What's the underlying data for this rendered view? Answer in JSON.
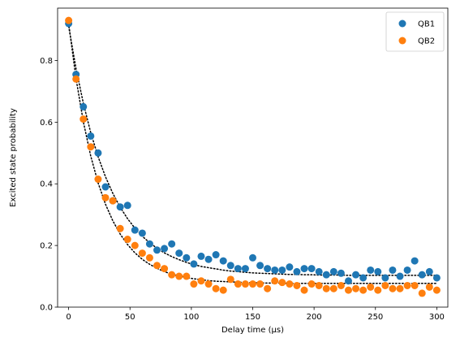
{
  "chart_data": {
    "type": "scatter",
    "title": "",
    "xlabel": "Delay time (µs)",
    "ylabel": "Excited state probability",
    "xlim": [
      -9,
      309
    ],
    "ylim": [
      0.0,
      0.97
    ],
    "xticks": [
      0,
      50,
      100,
      150,
      200,
      250,
      300
    ],
    "yticks": [
      0.0,
      0.2,
      0.4,
      0.6,
      0.8
    ],
    "ytick_labels": [
      "0.0",
      "0.2",
      "0.4",
      "0.6",
      "0.8"
    ],
    "grid": false,
    "legend_position": "top-right",
    "x": [
      0,
      6,
      12,
      18,
      24,
      30,
      36,
      42,
      48,
      54,
      60,
      66,
      72,
      78,
      84,
      90,
      96,
      102,
      108,
      114,
      120,
      126,
      132,
      138,
      144,
      150,
      156,
      162,
      168,
      174,
      180,
      186,
      192,
      198,
      204,
      210,
      216,
      222,
      228,
      234,
      240,
      246,
      252,
      258,
      264,
      270,
      276,
      282,
      288,
      294,
      300
    ],
    "series": [
      {
        "name": "QB1",
        "color": "#1f77b4",
        "values": [
          0.92,
          0.755,
          0.65,
          0.555,
          0.5,
          0.39,
          0.345,
          0.325,
          0.33,
          0.25,
          0.24,
          0.205,
          0.185,
          0.19,
          0.205,
          0.175,
          0.16,
          0.14,
          0.165,
          0.155,
          0.17,
          0.15,
          0.135,
          0.125,
          0.125,
          0.16,
          0.135,
          0.125,
          0.12,
          0.12,
          0.13,
          0.115,
          0.125,
          0.125,
          0.115,
          0.105,
          0.115,
          0.11,
          0.085,
          0.105,
          0.095,
          0.12,
          0.115,
          0.095,
          0.12,
          0.1,
          0.12,
          0.15,
          0.105,
          0.115,
          0.095
        ],
        "fit": [
          0.911,
          0.774,
          0.661,
          0.566,
          0.488,
          0.423,
          0.369,
          0.324,
          0.287,
          0.256,
          0.23,
          0.209,
          0.191,
          0.176,
          0.164,
          0.154,
          0.145,
          0.138,
          0.132,
          0.128,
          0.124,
          0.12,
          0.117,
          0.115,
          0.113,
          0.111,
          0.11,
          0.109,
          0.108,
          0.107,
          0.106,
          0.106,
          0.105,
          0.105,
          0.104,
          0.104,
          0.104,
          0.104,
          0.103,
          0.103,
          0.103,
          0.103,
          0.103,
          0.103,
          0.103,
          0.103,
          0.103,
          0.103,
          0.103,
          0.103,
          0.103
        ]
      },
      {
        "name": "QB2",
        "color": "#ff7f0e",
        "values": [
          0.93,
          0.74,
          0.61,
          0.52,
          0.415,
          0.355,
          0.345,
          0.255,
          0.22,
          0.2,
          0.175,
          0.16,
          0.135,
          0.125,
          0.105,
          0.1,
          0.1,
          0.075,
          0.085,
          0.075,
          0.06,
          0.055,
          0.09,
          0.075,
          0.075,
          0.075,
          0.075,
          0.06,
          0.085,
          0.08,
          0.075,
          0.07,
          0.055,
          0.075,
          0.07,
          0.06,
          0.06,
          0.07,
          0.055,
          0.06,
          0.055,
          0.065,
          0.055,
          0.07,
          0.06,
          0.06,
          0.07,
          0.07,
          0.045,
          0.065,
          0.055
        ],
        "fit": [
          0.921,
          0.742,
          0.601,
          0.49,
          0.403,
          0.334,
          0.28,
          0.237,
          0.203,
          0.176,
          0.155,
          0.139,
          0.126,
          0.115,
          0.107,
          0.101,
          0.096,
          0.092,
          0.089,
          0.086,
          0.084,
          0.083,
          0.082,
          0.081,
          0.08,
          0.079,
          0.079,
          0.078,
          0.078,
          0.078,
          0.077,
          0.077,
          0.077,
          0.077,
          0.077,
          0.077,
          0.077,
          0.077,
          0.077,
          0.077,
          0.077,
          0.077,
          0.077,
          0.077,
          0.077,
          0.077,
          0.077,
          0.077,
          0.077,
          0.077,
          0.077
        ]
      }
    ]
  }
}
